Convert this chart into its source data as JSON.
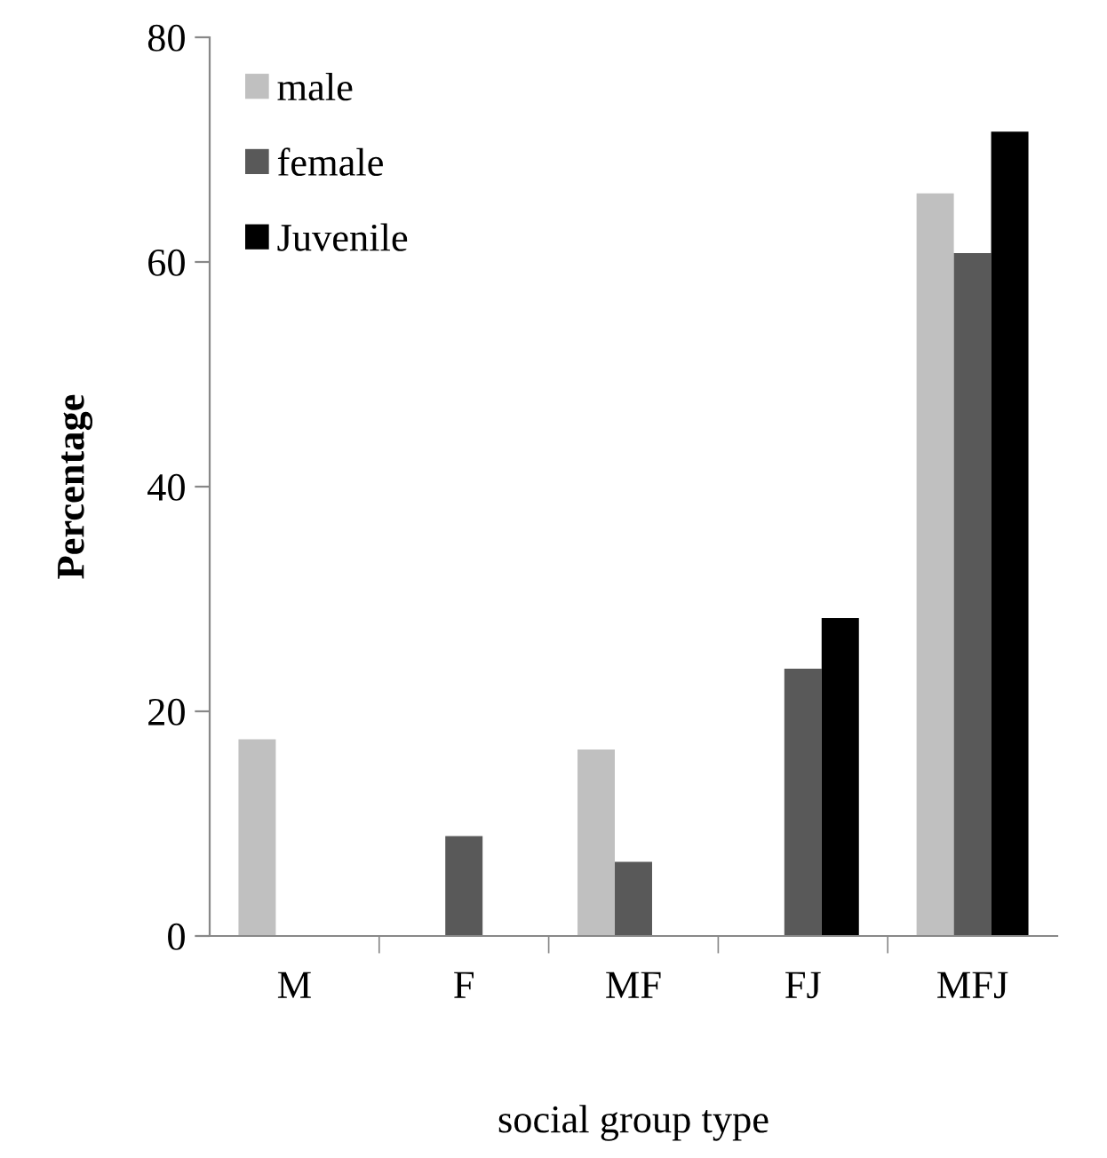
{
  "chart_data": {
    "type": "bar",
    "xlabel": "social group type",
    "ylabel": "Percentage",
    "categories": [
      "M",
      "F",
      "MF",
      "FJ",
      "MFJ"
    ],
    "series": [
      {
        "name": "male",
        "color": "#c0c0c0",
        "values": [
          17.5,
          0,
          16.6,
          0,
          66.1
        ]
      },
      {
        "name": "female",
        "color": "#595959",
        "values": [
          0,
          8.9,
          6.6,
          23.8,
          60.8
        ]
      },
      {
        "name": "Juvenile",
        "color": "#000000",
        "values": [
          0,
          0,
          0,
          28.3,
          71.6
        ]
      }
    ],
    "ylim": [
      0,
      80
    ],
    "yticks": [
      0,
      20,
      40,
      60,
      80
    ],
    "grid": false,
    "legend": "top left"
  }
}
